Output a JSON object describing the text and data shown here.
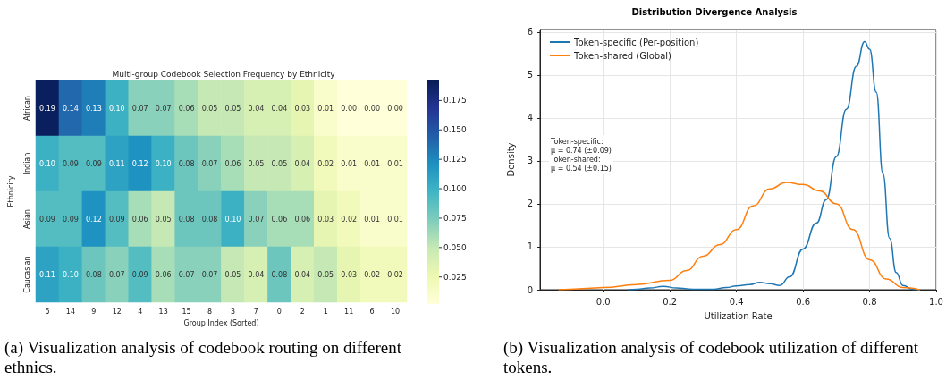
{
  "chart_data": [
    {
      "type": "heatmap",
      "title": "Multi-group Codebook Selection Frequency by Ethnicity",
      "xlabel": "Group Index (Sorted)",
      "ylabel": "Ethnicity",
      "categories": [
        "5",
        "14",
        "9",
        "12",
        "4",
        "13",
        "15",
        "8",
        "3",
        "7",
        "0",
        "2",
        "1",
        "11",
        "6",
        "10"
      ],
      "y_categories": [
        "African",
        "Indian",
        "Asian",
        "Caucasian"
      ],
      "cells": [
        [
          0.19,
          0.14,
          0.13,
          0.1,
          0.07,
          0.07,
          0.06,
          0.05,
          0.05,
          0.04,
          0.04,
          0.03,
          0.01,
          0.0,
          0.0,
          0.0
        ],
        [
          0.1,
          0.09,
          0.09,
          0.11,
          0.12,
          0.1,
          0.08,
          0.07,
          0.06,
          0.05,
          0.05,
          0.04,
          0.02,
          0.01,
          0.01,
          0.01
        ],
        [
          0.09,
          0.09,
          0.12,
          0.09,
          0.06,
          0.05,
          0.08,
          0.08,
          0.1,
          0.07,
          0.06,
          0.06,
          0.03,
          0.02,
          0.01,
          0.01
        ],
        [
          0.11,
          0.1,
          0.08,
          0.07,
          0.09,
          0.06,
          0.07,
          0.07,
          0.05,
          0.04,
          0.08,
          0.04,
          0.05,
          0.03,
          0.02,
          0.02
        ]
      ],
      "cell_labels": [
        [
          "0.19",
          "0.14",
          "0.13",
          "0.10",
          "0.07",
          "0.07",
          "0.06",
          "0.05",
          "0.05",
          "0.04",
          "0.04",
          "0.03",
          "0.01",
          "0.00",
          "0.00",
          "0.00"
        ],
        [
          "0.10",
          "0.09",
          "0.09",
          "0.11",
          "0.12",
          "0.10",
          "0.08",
          "0.07",
          "0.06",
          "0.05",
          "0.05",
          "0.04",
          "0.02",
          "0.01",
          "0.01",
          "0.01"
        ],
        [
          "0.09",
          "0.09",
          "0.12",
          "0.09",
          "0.06",
          "0.05",
          "0.08",
          "0.08",
          "0.10",
          "0.07",
          "0.06",
          "0.06",
          "0.03",
          "0.02",
          "0.01",
          "0.01"
        ],
        [
          "0.11",
          "0.10",
          "0.08",
          "0.07",
          "0.09",
          "0.06",
          "0.07",
          "0.07",
          "0.05",
          "0.04",
          "0.08",
          "0.04",
          "0.05",
          "0.03",
          "0.02",
          "0.02"
        ]
      ],
      "clim": [
        0.002,
        0.192
      ],
      "cticks": [
        0.025,
        {
          "value": 0.05,
          "label": "0.050"
        },
        0.075,
        {
          "value": 0.1,
          "label": "0.100"
        },
        0.125,
        {
          "value": 0.15,
          "label": "0.150"
        },
        0.175
      ],
      "annotations": [
        "(a) Visualization analysis of codebook routing on different ethnics."
      ]
    },
    {
      "type": "line",
      "title": "Distribution Divergence Analysis",
      "xlabel": "Utilization Rate",
      "ylabel": "Density",
      "series": [
        {
          "name": "Token-specific (Per-position)",
          "color": "#1f77b4",
          "x": [
            0.075,
            0.1,
            0.14,
            0.18,
            0.22,
            0.27,
            0.33,
            0.37,
            0.4,
            0.44,
            0.47,
            0.5,
            0.53,
            0.56,
            0.6,
            0.64,
            0.67,
            0.7,
            0.73,
            0.76,
            0.785,
            0.8,
            0.82,
            0.84,
            0.86,
            0.88,
            0.9,
            0.93,
            0.95
          ],
          "values": [
            0,
            0.01,
            0.04,
            0.08,
            0.04,
            0.01,
            0.01,
            0.05,
            0.09,
            0.12,
            0.17,
            0.14,
            0.1,
            0.3,
            0.95,
            1.55,
            2.1,
            3.1,
            4.2,
            5.2,
            5.78,
            5.6,
            4.6,
            2.7,
            1.2,
            0.4,
            0.1,
            0.01,
            0
          ]
        },
        {
          "name": "Token-shared (Global)",
          "color": "#ff7f0e",
          "x": [
            -0.133,
            -0.1,
            -0.05,
            0.0,
            0.1,
            0.2,
            0.25,
            0.3,
            0.35,
            0.4,
            0.45,
            0.5,
            0.55,
            0.6,
            0.65,
            0.7,
            0.75,
            0.8,
            0.85,
            0.9,
            0.95
          ],
          "values": [
            0,
            0.01,
            0.03,
            0.05,
            0.12,
            0.22,
            0.45,
            0.78,
            1.05,
            1.4,
            1.95,
            2.35,
            2.5,
            2.45,
            2.3,
            2.0,
            1.4,
            0.7,
            0.25,
            0.05,
            0
          ]
        }
      ],
      "xlim": [
        -0.19,
        1.0
      ],
      "xticks": [
        {
          "value": 0,
          "label": "0.0"
        },
        {
          "value": 0.2,
          "label": "0.2"
        },
        {
          "value": 0.4,
          "label": "0.4"
        },
        {
          "value": 0.6,
          "label": "0.6"
        },
        {
          "value": 0.8,
          "label": "0.8"
        },
        {
          "value": 1.0,
          "label": "1.0"
        }
      ],
      "ylim": [
        0,
        6.06
      ],
      "yticks": [
        0,
        1,
        2,
        3,
        4,
        5,
        6
      ],
      "grid": true,
      "legend": "top left",
      "marker": "none",
      "line_style": "solid",
      "annotations": [
        "Token-specific:\nμ = 0.74 (±0.09)\nToken-shared:\nμ = 0.54 (±0.15)",
        "(b) Visualization analysis of codebook utilization of different tokens."
      ]
    }
  ]
}
